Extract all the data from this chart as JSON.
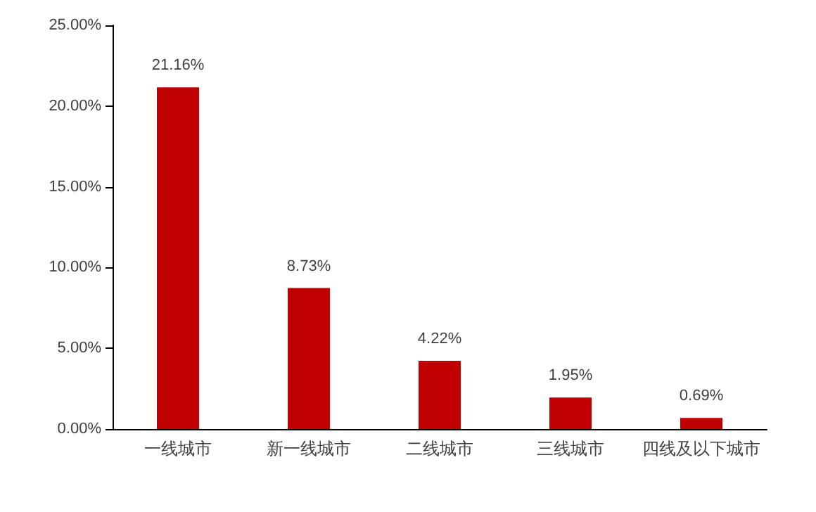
{
  "chart_data": {
    "type": "bar",
    "categories": [
      "一线城市",
      "新一线城市",
      "二线城市",
      "三线城市",
      "四线及以下城市"
    ],
    "values": [
      21.16,
      8.73,
      4.22,
      1.95,
      0.69
    ],
    "value_labels": [
      "21.16%",
      "8.73%",
      "4.22%",
      "1.95%",
      "0.69%"
    ],
    "color": "#c00000",
    "ylim": [
      0,
      25
    ],
    "yticks": [
      {
        "value": 0,
        "label": "0.00%"
      },
      {
        "value": 5,
        "label": "5.00%"
      },
      {
        "value": 10,
        "label": "10.00%"
      },
      {
        "value": 15,
        "label": "15.00%"
      },
      {
        "value": 20,
        "label": "20.00%"
      },
      {
        "value": 25,
        "label": "25.00%"
      }
    ],
    "grid": false
  }
}
